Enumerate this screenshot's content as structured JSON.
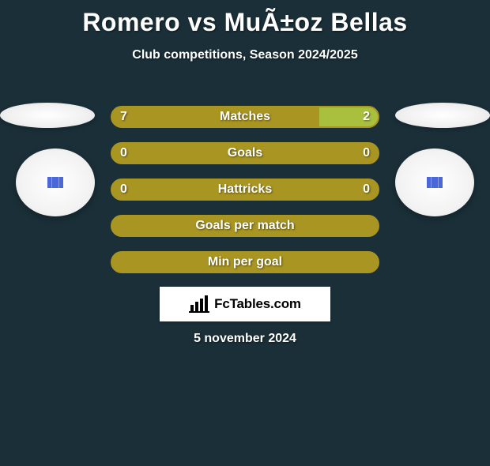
{
  "colors": {
    "background": "#1a2f38",
    "bar_primary": "#a99522",
    "bar_secondary": "#a9c03f",
    "pill_border": "#a99522",
    "text": "#ffffff",
    "badge_bg": "#ffffff",
    "jersey": "#4a68d8"
  },
  "title": "Romero vs MuÃ±oz Bellas",
  "subtitle": "Club competitions, Season 2024/2025",
  "rows": [
    {
      "label": "Matches",
      "left": "7",
      "right": "2",
      "right_pct": 22
    },
    {
      "label": "Goals",
      "left": "0",
      "right": "0",
      "right_pct": 0
    },
    {
      "label": "Hattricks",
      "left": "0",
      "right": "0",
      "right_pct": 0
    },
    {
      "label": "Goals per match",
      "left": "",
      "right": "",
      "right_pct": 0
    },
    {
      "label": "Min per goal",
      "left": "",
      "right": "",
      "right_pct": 0
    }
  ],
  "brand": "FcTables.com",
  "date": "5 november 2024"
}
